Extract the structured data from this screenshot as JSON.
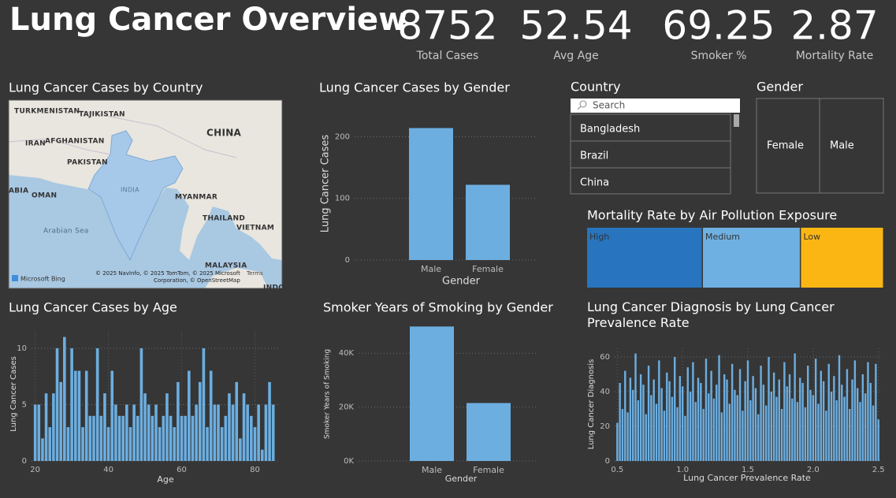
{
  "title": "Lung Cancer Overview",
  "kpis": [
    {
      "value": 8752,
      "label": "Total Cases"
    },
    {
      "value": 52.54,
      "label": "Avg Age"
    },
    {
      "value": 69.25,
      "label": "Smoker %"
    },
    {
      "value": 2.87,
      "label": "Mortality Rate"
    }
  ],
  "map": {
    "title": "Lung Cancer Cases by Country",
    "labels": [
      "TURKMENISTAN",
      "TAJIKISTAN",
      "CHINA",
      "IRAN",
      "AFGHANISTAN",
      "PAKISTAN",
      "INDIA",
      "ABIA",
      "OMAN",
      "MYANMAR",
      "THAILAND",
      "VIETNAM",
      "Arabian Sea",
      "MALAYSIA",
      "INDO"
    ],
    "attribution": [
      "© 2025 NavInfo, © 2025 TomTom, © 2025 Microsoft",
      "Terms",
      "Corporation, © OpenStreetMap"
    ],
    "logo": "Microsoft Bing"
  },
  "slicers": {
    "country": {
      "title": "Country",
      "placeholder": "Search",
      "items": [
        "Bangladesh",
        "Brazil",
        "China"
      ]
    },
    "gender": {
      "title": "Gender",
      "items": [
        "Female",
        "Male"
      ]
    }
  },
  "chart_data": [
    {
      "type": "bar",
      "title": "Lung Cancer Cases by Gender",
      "x_label": "Gender",
      "y_label": "Lung Cancer Cases",
      "categories": [
        "Male",
        "Female"
      ],
      "values": [
        214,
        122
      ],
      "color": "#6caee0",
      "ylim": [
        0,
        230
      ],
      "yticks": [
        0,
        100,
        200
      ],
      "grid": true
    },
    {
      "type": "treemap",
      "title": "Mortality Rate by Air Pollution Exposure",
      "categories": [
        "High",
        "Medium",
        "Low"
      ],
      "values": [
        39,
        33,
        28
      ],
      "colors": [
        "#2874be",
        "#6fb0e3",
        "#fbb614"
      ]
    },
    {
      "type": "bar",
      "title": "Lung Cancer Cases by Age",
      "x_label": "Age",
      "y_label": "Lung Cancer Cases",
      "x": [
        20,
        21,
        22,
        23,
        24,
        25,
        26,
        27,
        28,
        29,
        30,
        31,
        32,
        33,
        34,
        35,
        36,
        37,
        38,
        39,
        40,
        41,
        42,
        43,
        44,
        45,
        46,
        47,
        48,
        49,
        50,
        51,
        52,
        53,
        54,
        55,
        56,
        57,
        58,
        59,
        60,
        61,
        62,
        63,
        64,
        65,
        66,
        67,
        68,
        69,
        70,
        71,
        72,
        73,
        74,
        75,
        76,
        77,
        78,
        79,
        80,
        81,
        82,
        83,
        84,
        85
      ],
      "values": [
        5,
        5,
        2,
        6,
        3,
        6,
        10,
        7,
        11,
        3,
        10,
        8,
        8,
        3,
        8,
        4,
        4,
        10,
        4,
        6,
        3,
        8,
        5,
        4,
        4,
        5,
        3,
        5,
        4,
        10,
        6,
        5,
        4,
        5,
        3,
        4,
        6,
        4,
        3,
        7,
        4,
        4,
        8,
        4,
        5,
        7,
        10,
        3,
        8,
        5,
        5,
        3,
        4,
        6,
        5,
        7,
        2,
        6,
        5,
        4,
        3,
        5,
        1,
        5,
        7,
        5
      ],
      "color": "#6caee0",
      "xlim": [
        19,
        87
      ],
      "xticks": [
        20,
        40,
        60,
        80
      ],
      "ylim": [
        0,
        11.5
      ],
      "yticks": [
        0,
        5,
        10
      ],
      "grid": true
    },
    {
      "type": "bar",
      "title": "Smoker Years of Smoking by Gender",
      "x_label": "Gender",
      "y_label": "Smoker Years of Smoking",
      "categories": [
        "Male",
        "Female"
      ],
      "values": [
        49900,
        21500
      ],
      "color": "#6caee0",
      "ylim": [
        0,
        50000
      ],
      "yticks": [
        {
          "value": 0,
          "label": "0K"
        },
        {
          "value": 20000,
          "label": "20K"
        },
        {
          "value": 40000,
          "label": "40K"
        }
      ],
      "grid": true
    },
    {
      "type": "bar",
      "title": "Lung Cancer Diagnosis by Lung Cancer Prevalence Rate",
      "x_label": "Lung Cancer Prevalence Rate",
      "y_label": "Lung Cancer Diagnosis",
      "x": [
        0.5,
        0.52,
        0.54,
        0.56,
        0.58,
        0.6,
        0.62,
        0.64,
        0.66,
        0.68,
        0.7,
        0.72,
        0.74,
        0.76,
        0.78,
        0.8,
        0.82,
        0.84,
        0.86,
        0.88,
        0.9,
        0.92,
        0.94,
        0.96,
        0.98,
        1.0,
        1.02,
        1.04,
        1.06,
        1.08,
        1.1,
        1.12,
        1.14,
        1.16,
        1.18,
        1.2,
        1.22,
        1.24,
        1.26,
        1.28,
        1.3,
        1.32,
        1.34,
        1.36,
        1.38,
        1.4,
        1.42,
        1.44,
        1.46,
        1.48,
        1.5,
        1.52,
        1.54,
        1.56,
        1.58,
        1.6,
        1.62,
        1.64,
        1.66,
        1.68,
        1.7,
        1.72,
        1.74,
        1.76,
        1.78,
        1.8,
        1.82,
        1.84,
        1.86,
        1.88,
        1.9,
        1.92,
        1.94,
        1.96,
        1.98,
        2.0,
        2.02,
        2.04,
        2.06,
        2.08,
        2.1,
        2.12,
        2.14,
        2.16,
        2.18,
        2.2,
        2.22,
        2.24,
        2.26,
        2.28,
        2.3,
        2.32,
        2.34,
        2.36,
        2.38,
        2.4,
        2.42,
        2.44,
        2.46,
        2.48,
        2.5
      ],
      "values": [
        22,
        45,
        30,
        52,
        28,
        48,
        41,
        62,
        35,
        50,
        44,
        27,
        55,
        38,
        47,
        33,
        58,
        42,
        29,
        51,
        46,
        37,
        60,
        31,
        49,
        43,
        26,
        54,
        40,
        57,
        34,
        48,
        45,
        30,
        59,
        39,
        52,
        36,
        44,
        61,
        28,
        50,
        47,
        33,
        56,
        41,
        38,
        53,
        29,
        46,
        58,
        35,
        49,
        42,
        27,
        55,
        44,
        32,
        60,
        40,
        51,
        37,
        47,
        30,
        57,
        43,
        50,
        36,
        62,
        34,
        48,
        45,
        31,
        55,
        41,
        38,
        59,
        33,
        52,
        46,
        29,
        56,
        40,
        49,
        35,
        61,
        44,
        37,
        53,
        30,
        47,
        58,
        42,
        34,
        50,
        39,
        57,
        45,
        32,
        56,
        24
      ],
      "color": "#6caee0",
      "xlim": [
        0.48,
        2.52
      ],
      "xticks": [
        0.5,
        {
          "value": 1,
          "label": "1.0"
        },
        1.5,
        {
          "value": 2,
          "label": "2.0"
        },
        2.5
      ],
      "ylim": [
        0,
        65
      ],
      "yticks": [
        0,
        20,
        40,
        60
      ],
      "grid": true
    }
  ]
}
